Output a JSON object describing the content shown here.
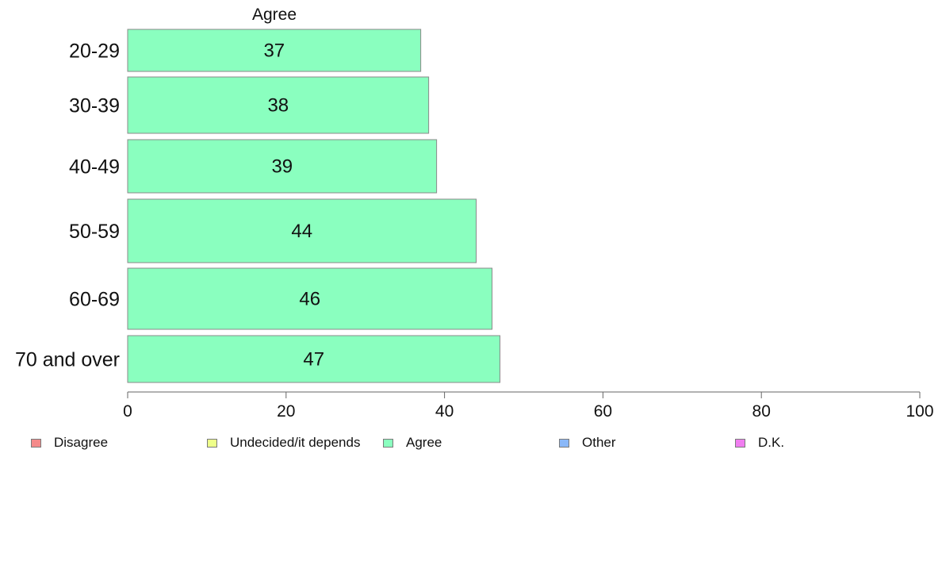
{
  "chart_data": {
    "type": "bar",
    "orientation": "horizontal",
    "title": "Agree",
    "categories": [
      "20-29",
      "30-39",
      "40-49",
      "50-59",
      "60-69",
      "70 and over"
    ],
    "series": [
      {
        "name": "Agree",
        "values": [
          37,
          38,
          39,
          44,
          46,
          47
        ],
        "color": "#8affbf"
      }
    ],
    "data_labels": [
      "37",
      "38",
      "39",
      "44",
      "46",
      "47"
    ],
    "xlim": [
      0,
      100
    ],
    "xticks": [
      0,
      20,
      40,
      60,
      80,
      100
    ],
    "xtick_labels": [
      "0",
      "20",
      "40",
      "60",
      "80",
      "100"
    ],
    "grid": false,
    "legend_placement": "bottom",
    "legend": [
      {
        "label": "Disagree",
        "color": "#f48a8a"
      },
      {
        "label": "Undecided/it depends",
        "color": "#eeff8a"
      },
      {
        "label": "Agree",
        "color": "#8affbf"
      },
      {
        "label": "Other",
        "color": "#8ab8f8"
      },
      {
        "label": "D.K.",
        "color": "#f07ef0"
      }
    ]
  }
}
